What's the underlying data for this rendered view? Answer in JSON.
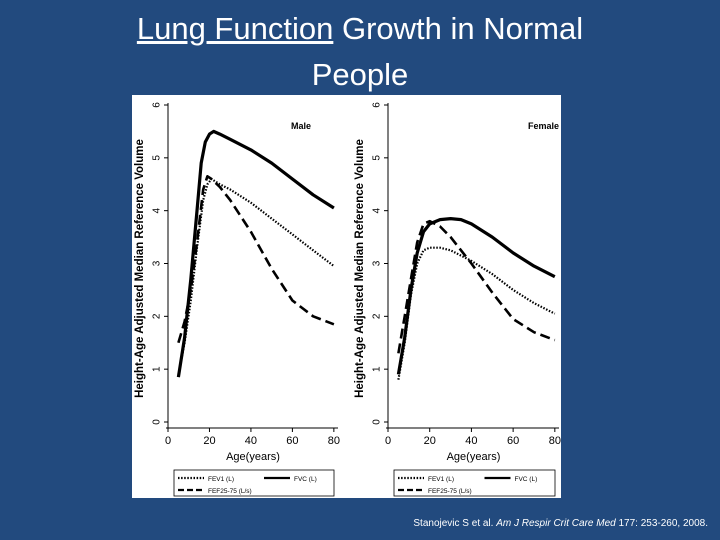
{
  "title": {
    "underlined": "Lung Function",
    "line1_rest": " Growth in Normal",
    "line2": "People"
  },
  "citation": {
    "prefix": "Stanojevic S et al. ",
    "journal": "Am J Respir Crit Care Med",
    "details": " 177: 253-260, 2008."
  },
  "chart_data": [
    {
      "type": "line",
      "panel_label": "Male",
      "xlabel": "Age(years)",
      "ylabel": "Height-Age Adjusted Median Reference Volume",
      "xlim": [
        0,
        82
      ],
      "ylim": [
        0,
        6
      ],
      "xticks": [
        0,
        20,
        40,
        60,
        80
      ],
      "yticks": [
        0,
        1,
        2,
        3,
        4,
        5,
        6
      ],
      "series": [
        {
          "name": "FEV1 (L)",
          "style": "dotted",
          "x": [
            5,
            8,
            11,
            14,
            17,
            19,
            21,
            25,
            30,
            40,
            50,
            60,
            70,
            80
          ],
          "y": [
            0.9,
            1.5,
            2.3,
            3.3,
            4.2,
            4.5,
            4.6,
            4.5,
            4.4,
            4.15,
            3.85,
            3.55,
            3.25,
            2.95
          ]
        },
        {
          "name": "FVC (L)",
          "style": "solid",
          "x": [
            5,
            8,
            11,
            14,
            16,
            18,
            20,
            22,
            25,
            30,
            40,
            50,
            60,
            70,
            80
          ],
          "y": [
            0.85,
            1.6,
            2.7,
            4.0,
            4.9,
            5.3,
            5.45,
            5.5,
            5.45,
            5.35,
            5.15,
            4.9,
            4.6,
            4.3,
            4.05
          ]
        },
        {
          "name": "FEF25-75 (L/s)",
          "style": "dashed",
          "x": [
            5,
            8,
            11,
            14,
            17,
            19,
            21,
            25,
            30,
            40,
            50,
            60,
            70,
            80
          ],
          "y": [
            1.5,
            1.9,
            2.5,
            3.4,
            4.4,
            4.65,
            4.6,
            4.45,
            4.2,
            3.6,
            2.9,
            2.3,
            2.0,
            1.85
          ]
        }
      ],
      "legend": [
        "FEV1 (L)",
        "FVC (L)",
        "FEF25-75 (L/s)"
      ]
    },
    {
      "type": "line",
      "panel_label": "Female",
      "xlabel": "Age(years)",
      "ylabel": "Height-Age Adjusted Median Reference Volume",
      "xlim": [
        0,
        82
      ],
      "ylim": [
        0,
        6
      ],
      "xticks": [
        0,
        20,
        40,
        60,
        80
      ],
      "yticks": [
        0,
        1,
        2,
        3,
        4,
        5,
        6
      ],
      "series": [
        {
          "name": "FEV1 (L)",
          "style": "dotted",
          "x": [
            5,
            8,
            11,
            14,
            17,
            20,
            25,
            30,
            40,
            50,
            60,
            70,
            80
          ],
          "y": [
            0.8,
            1.5,
            2.4,
            3.0,
            3.25,
            3.3,
            3.3,
            3.25,
            3.05,
            2.8,
            2.5,
            2.25,
            2.05
          ]
        },
        {
          "name": "FVC (L)",
          "style": "solid",
          "x": [
            5,
            8,
            11,
            14,
            17,
            20,
            25,
            30,
            35,
            40,
            50,
            60,
            70,
            80
          ],
          "y": [
            0.9,
            1.6,
            2.5,
            3.2,
            3.6,
            3.75,
            3.83,
            3.85,
            3.83,
            3.75,
            3.5,
            3.2,
            2.95,
            2.75
          ]
        },
        {
          "name": "FEF25-75 (L/s)",
          "style": "dashed",
          "x": [
            5,
            8,
            11,
            14,
            17,
            20,
            25,
            30,
            40,
            50,
            60,
            70,
            80
          ],
          "y": [
            1.3,
            2.0,
            2.7,
            3.4,
            3.75,
            3.8,
            3.7,
            3.5,
            3.0,
            2.45,
            1.95,
            1.7,
            1.55
          ]
        }
      ],
      "legend": [
        "FEV1 (L)",
        "FVC (L)",
        "FEF25-75 (L/s)"
      ]
    }
  ]
}
